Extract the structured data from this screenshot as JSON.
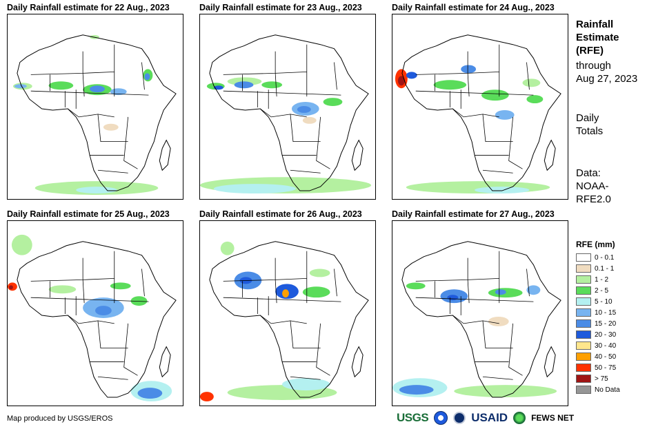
{
  "panels": [
    {
      "title": "Daily Rainfall estimate for 22 Aug., 2023"
    },
    {
      "title": "Daily Rainfall estimate for 23 Aug., 2023"
    },
    {
      "title": "Daily Rainfall estimate for 24 Aug., 2023"
    },
    {
      "title": "Daily Rainfall estimate for 25 Aug., 2023"
    },
    {
      "title": "Daily Rainfall estimate for 26 Aug., 2023"
    },
    {
      "title": "Daily Rainfall estimate for 27 Aug., 2023"
    }
  ],
  "sidebar": {
    "title_line1": "Rainfall",
    "title_line2": "Estimate",
    "title_line3": "(RFE)",
    "through_label": "through",
    "through_date": "Aug 27, 2023",
    "daily_line1": "Daily",
    "daily_line2": "Totals",
    "data_line1": "Data:",
    "data_line2": "NOAA-",
    "data_line3": "RFE2.0"
  },
  "legend": {
    "title": "RFE (mm)",
    "items": [
      {
        "label": "0 - 0.1",
        "color": "#ffffff"
      },
      {
        "label": "0.1 - 1",
        "color": "#f0dcc0"
      },
      {
        "label": "1 - 2",
        "color": "#b4f0a0"
      },
      {
        "label": "2 - 5",
        "color": "#5adc5a"
      },
      {
        "label": "5 - 10",
        "color": "#b4f0f0"
      },
      {
        "label": "10 - 15",
        "color": "#78b4f0"
      },
      {
        "label": "15 - 20",
        "color": "#4b8ce6"
      },
      {
        "label": "20 - 30",
        "color": "#1e5adc"
      },
      {
        "label": "30 - 40",
        "color": "#ffe68c"
      },
      {
        "label": "40 - 50",
        "color": "#ffa000"
      },
      {
        "label": "50 - 75",
        "color": "#ff3200"
      },
      {
        "label": "> 75",
        "color": "#a01414"
      },
      {
        "label": "No Data",
        "color": "#969696"
      }
    ]
  },
  "credit": "Map produced by USGS/EROS",
  "logos": {
    "usgs": "USGS",
    "usaid": "USAID",
    "fews": "FEWS NET"
  }
}
